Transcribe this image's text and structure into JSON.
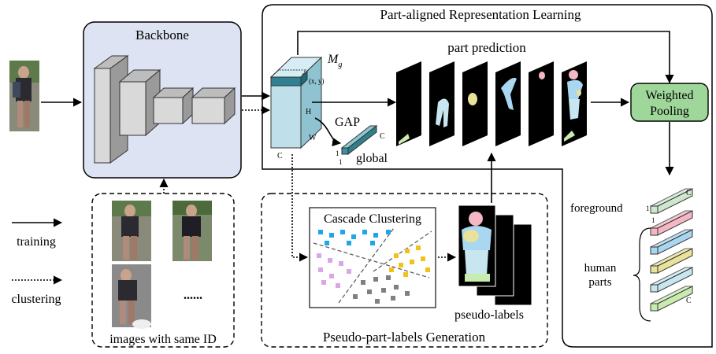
{
  "panels": {
    "backbone": "Backbone",
    "part_aligned": "Part-aligned Representation Learning",
    "pseudo_gen": "Pseudo-part-labels Generation",
    "same_id": "images with same ID"
  },
  "labels": {
    "feature_map": "M",
    "feature_map_sub": "g",
    "xy": "(x, y)",
    "H": "H",
    "W": "W",
    "C": "C",
    "gap": "GAP",
    "global": "global",
    "global_c": "C",
    "one_a": "1",
    "one_b": "1",
    "part_prediction": "part prediction",
    "weighted_pooling_l1": "Weighted",
    "weighted_pooling_l2": "Pooling",
    "foreground": "foreground",
    "fg_one_a": "1",
    "fg_one_b": "1",
    "fg_c": "C",
    "human_l1": "human",
    "human_l2": "parts",
    "parts_c": "C",
    "cascade": "Cascade Clustering",
    "pseudo_labels": "pseudo-labels",
    "ellipsis": "......"
  },
  "legend": {
    "training": "training",
    "clustering": "clustering"
  },
  "colors": {
    "backbone_fill": "#dde3f2",
    "feature_fill": "#bfe0ea",
    "global_fill": "#3f8f9c",
    "pooling_fill": "#9fd79a",
    "foreground_fill": "#cde8cf",
    "parts": [
      "#f4b8c5",
      "#a9d6f0",
      "#e8e29a",
      "#c7e6f0",
      "#c8ecb0"
    ],
    "cluster_blue": "#1ea7e8",
    "cluster_yellow": "#f2c21a",
    "cluster_pink": "#d9a6e6",
    "cluster_gray": "#808080"
  }
}
